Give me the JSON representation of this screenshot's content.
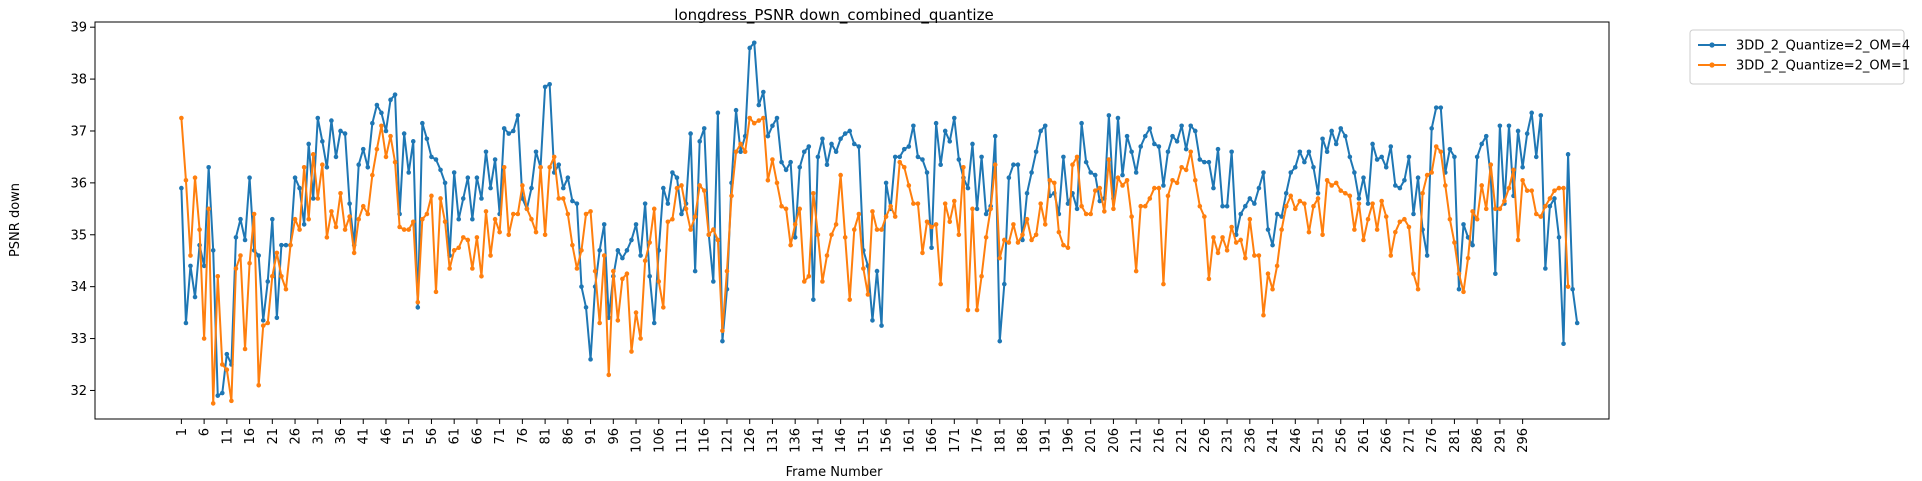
{
  "chart_data": {
    "type": "line",
    "title": "longdress_PSNR down_combined_quantize",
    "xlabel": "Frame Number",
    "ylabel": "PSNR down",
    "xlim": [
      -18,
      315
    ],
    "ylim": [
      31.45,
      39.1
    ],
    "yticks": [
      32,
      33,
      34,
      35,
      36,
      37,
      38,
      39
    ],
    "xticks": [
      1,
      6,
      11,
      16,
      21,
      26,
      31,
      36,
      41,
      46,
      51,
      56,
      61,
      66,
      71,
      76,
      81,
      86,
      91,
      96,
      101,
      106,
      111,
      116,
      121,
      126,
      131,
      136,
      141,
      146,
      151,
      156,
      161,
      166,
      171,
      176,
      181,
      186,
      191,
      196,
      201,
      206,
      211,
      216,
      221,
      226,
      231,
      236,
      241,
      246,
      251,
      256,
      261,
      266,
      271,
      276,
      281,
      286,
      291,
      296
    ],
    "grid": false,
    "legend_position": "outside-top-right",
    "x_start": 1,
    "series": [
      {
        "name": "3DD_2_Quantize=2_OM=4",
        "color": "#1f77b4",
        "values": [
          35.9,
          33.3,
          34.4,
          33.8,
          34.8,
          34.4,
          36.3,
          34.7,
          31.9,
          31.95,
          32.7,
          32.5,
          34.95,
          35.3,
          34.9,
          36.1,
          34.7,
          34.6,
          33.35,
          34.1,
          35.3,
          33.4,
          34.8,
          34.8,
          34.8,
          36.1,
          35.9,
          35.2,
          36.75,
          35.7,
          37.25,
          36.8,
          36.3,
          37.2,
          36.5,
          37.0,
          36.95,
          35.6,
          34.8,
          36.35,
          36.65,
          36.3,
          37.15,
          37.5,
          37.35,
          37.0,
          37.6,
          37.7,
          35.4,
          36.95,
          36.2,
          36.8,
          33.6,
          37.15,
          36.85,
          36.5,
          36.45,
          36.25,
          36.0,
          34.6,
          36.2,
          35.3,
          35.7,
          36.1,
          35.3,
          36.1,
          35.7,
          36.6,
          35.9,
          36.45,
          35.4,
          37.05,
          36.95,
          37.0,
          37.3,
          35.7,
          35.5,
          35.9,
          36.6,
          36.3,
          37.85,
          37.9,
          36.2,
          36.35,
          35.9,
          36.1,
          35.65,
          35.6,
          34.0,
          33.6,
          32.6,
          34.0,
          34.7,
          35.2,
          33.4,
          34.2,
          34.7,
          34.55,
          34.7,
          34.9,
          35.2,
          34.6,
          35.6,
          34.2,
          33.3,
          34.7,
          35.9,
          35.6,
          36.2,
          36.1,
          35.4,
          35.6,
          36.95,
          34.3,
          36.8,
          37.05,
          35.0,
          34.1,
          37.35,
          32.95,
          33.95,
          36.0,
          37.4,
          36.6,
          36.9,
          38.6,
          38.7,
          37.5,
          37.75,
          36.9,
          37.1,
          37.25,
          36.4,
          36.25,
          36.4,
          34.95,
          36.3,
          36.6,
          36.7,
          33.75,
          36.5,
          36.85,
          36.35,
          36.75,
          36.6,
          36.85,
          36.95,
          37.0,
          36.75,
          36.7,
          34.7,
          34.4,
          33.35,
          34.3,
          33.25,
          36.0,
          35.5,
          36.5,
          36.5,
          36.65,
          36.7,
          37.1,
          36.5,
          36.45,
          36.2,
          34.75,
          37.15,
          36.35,
          37.0,
          36.8,
          37.25,
          36.45,
          36.1,
          35.9,
          36.75,
          35.5,
          36.5,
          35.4,
          35.55,
          36.9,
          32.95,
          34.05,
          36.1,
          36.35,
          36.35,
          34.9,
          35.8,
          36.2,
          36.6,
          37.0,
          37.1,
          35.75,
          35.8,
          35.4,
          36.5,
          35.6,
          35.8,
          35.5,
          37.15,
          36.4,
          36.2,
          36.15,
          35.65,
          35.7,
          37.3,
          35.7,
          37.25,
          36.15,
          36.9,
          36.6,
          36.2,
          36.7,
          36.9,
          37.05,
          36.75,
          36.7,
          35.95,
          36.6,
          36.9,
          36.8,
          37.1,
          36.65,
          37.1,
          37.0,
          36.45,
          36.4,
          36.4,
          35.9,
          36.65,
          35.55,
          35.55,
          36.6,
          35.0,
          35.4,
          35.55,
          35.7,
          35.6,
          35.9,
          36.2,
          35.1,
          34.8,
          35.4,
          35.35,
          35.8,
          36.2,
          36.3,
          36.6,
          36.4,
          36.6,
          36.3,
          35.8,
          36.85,
          36.6,
          37.0,
          36.75,
          37.05,
          36.9,
          36.5,
          36.2,
          35.7,
          36.1,
          35.6,
          36.75,
          36.45,
          36.5,
          36.3,
          36.7,
          35.95,
          35.9,
          36.05,
          36.5,
          35.4,
          36.1,
          35.1,
          34.6,
          37.05,
          37.45,
          37.45,
          36.2,
          36.65,
          36.5,
          33.95,
          35.2,
          34.95,
          34.8,
          36.5,
          36.75,
          36.9,
          36.1,
          34.25,
          37.1,
          35.6,
          37.1,
          35.75,
          37.0,
          36.3,
          36.95,
          37.35,
          36.5,
          37.3,
          34.35,
          35.55,
          35.7,
          34.95,
          32.9,
          36.55,
          33.95,
          33.3
        ]
      },
      {
        "name": "3DD_2_Quantize=2_OM=1",
        "color": "#ff7f0e",
        "values": [
          37.25,
          36.05,
          34.6,
          36.1,
          35.1,
          33.0,
          35.5,
          31.75,
          34.2,
          32.5,
          32.4,
          31.8,
          34.35,
          34.6,
          32.8,
          34.45,
          35.4,
          32.1,
          33.25,
          33.3,
          34.2,
          34.65,
          34.2,
          33.95,
          34.8,
          35.3,
          35.1,
          36.3,
          35.3,
          36.55,
          35.7,
          36.35,
          34.95,
          35.45,
          35.15,
          35.8,
          35.1,
          35.35,
          34.65,
          35.3,
          35.55,
          35.4,
          36.15,
          36.65,
          37.1,
          36.5,
          36.9,
          36.4,
          35.15,
          35.1,
          35.1,
          35.25,
          33.7,
          35.3,
          35.4,
          35.75,
          33.9,
          35.7,
          35.25,
          34.35,
          34.7,
          34.75,
          34.95,
          34.9,
          34.35,
          34.95,
          34.2,
          35.45,
          34.6,
          35.3,
          35.05,
          36.3,
          35.0,
          35.4,
          35.4,
          35.95,
          35.5,
          35.3,
          35.05,
          36.3,
          35.0,
          36.3,
          36.5,
          35.7,
          35.7,
          35.4,
          34.8,
          34.35,
          34.7,
          35.4,
          35.45,
          34.3,
          33.3,
          34.6,
          32.3,
          34.3,
          33.35,
          34.15,
          34.25,
          32.75,
          33.5,
          33.0,
          34.5,
          34.85,
          35.5,
          34.1,
          33.6,
          35.25,
          35.3,
          35.9,
          35.95,
          35.5,
          35.1,
          35.35,
          35.95,
          35.85,
          35.0,
          35.1,
          34.9,
          33.15,
          34.3,
          35.75,
          36.6,
          36.75,
          36.6,
          37.25,
          37.15,
          37.2,
          37.25,
          36.05,
          36.45,
          36.0,
          35.55,
          35.5,
          34.8,
          35.2,
          35.5,
          34.1,
          34.2,
          35.8,
          35.0,
          34.1,
          34.6,
          35.0,
          35.2,
          36.15,
          34.95,
          33.75,
          35.1,
          35.4,
          34.35,
          33.85,
          35.45,
          35.1,
          35.1,
          35.35,
          35.55,
          35.35,
          36.4,
          36.3,
          35.95,
          35.6,
          35.6,
          34.65,
          35.25,
          35.15,
          35.2,
          34.05,
          35.6,
          35.25,
          35.65,
          35.0,
          36.3,
          33.55,
          35.5,
          33.55,
          34.2,
          34.95,
          35.5,
          36.35,
          34.55,
          34.9,
          34.85,
          35.2,
          34.85,
          35.0,
          35.3,
          34.9,
          35.0,
          35.6,
          35.2,
          36.05,
          36.0,
          35.05,
          34.8,
          34.75,
          36.35,
          36.5,
          35.55,
          35.4,
          35.4,
          35.85,
          35.9,
          35.45,
          36.45,
          35.5,
          36.1,
          35.95,
          36.05,
          35.35,
          34.3,
          35.55,
          35.55,
          35.7,
          35.9,
          35.9,
          34.05,
          35.75,
          36.05,
          36.0,
          36.3,
          36.25,
          36.6,
          36.05,
          35.55,
          35.35,
          34.15,
          34.95,
          34.65,
          34.95,
          34.7,
          35.15,
          34.85,
          34.9,
          34.55,
          35.3,
          34.6,
          34.6,
          33.45,
          34.25,
          33.95,
          34.4,
          35.1,
          35.55,
          35.75,
          35.5,
          35.65,
          35.6,
          35.05,
          35.55,
          35.7,
          35.0,
          36.05,
          35.95,
          36.0,
          35.85,
          35.8,
          35.75,
          35.1,
          35.6,
          34.9,
          35.3,
          35.6,
          35.1,
          35.65,
          35.35,
          34.6,
          35.05,
          35.25,
          35.3,
          35.15,
          34.25,
          33.95,
          35.8,
          36.15,
          36.2,
          36.7,
          36.6,
          35.95,
          35.3,
          34.85,
          34.25,
          33.9,
          34.55,
          35.45,
          35.3,
          35.95,
          35.5,
          36.35,
          35.5,
          35.5,
          35.65,
          35.9,
          36.25,
          34.9,
          36.05,
          35.85,
          35.85,
          35.4,
          35.35,
          35.55,
          35.7,
          35.85,
          35.9,
          35.9,
          34.0
        ]
      }
    ]
  }
}
